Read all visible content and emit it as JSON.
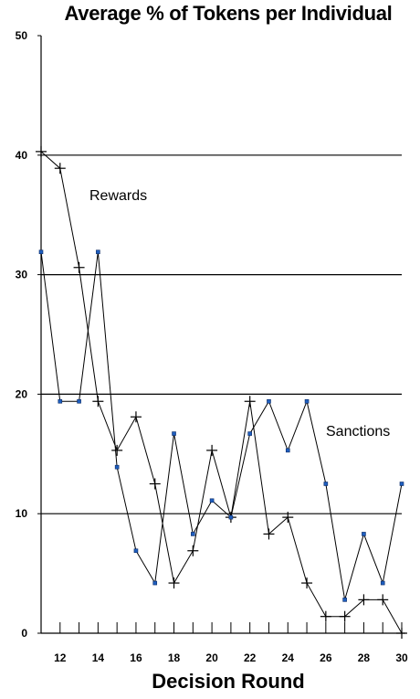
{
  "chart_data": {
    "type": "line",
    "title": "Average % of Tokens per Individual",
    "xlabel": "Decision Round",
    "ylabel": "",
    "xlim": [
      11,
      30
    ],
    "ylim": [
      0,
      50
    ],
    "x": [
      11,
      12,
      13,
      14,
      15,
      16,
      17,
      18,
      19,
      20,
      21,
      22,
      23,
      24,
      25,
      26,
      27,
      28,
      29,
      30
    ],
    "xticks": [
      12,
      14,
      16,
      18,
      20,
      22,
      24,
      26,
      28,
      30
    ],
    "yticks": [
      0,
      10,
      20,
      30,
      40,
      50
    ],
    "gridlines": [
      10,
      20,
      30,
      40
    ],
    "series": [
      {
        "name": "Rewards",
        "marker": "plus",
        "values": [
          40.3,
          38.9,
          30.6,
          19.4,
          15.3,
          18.1,
          12.5,
          4.2,
          6.9,
          15.3,
          9.7,
          19.4,
          8.3,
          9.7,
          4.2,
          1.4,
          1.4,
          2.8,
          2.8,
          0
        ]
      },
      {
        "name": "Sanctions",
        "marker": "square",
        "values": [
          31.9,
          19.4,
          19.4,
          31.9,
          13.9,
          6.9,
          4.2,
          16.7,
          8.3,
          11.1,
          9.7,
          16.7,
          19.4,
          15.3,
          19.4,
          12.5,
          2.8,
          8.3,
          4.2,
          12.5
        ]
      }
    ],
    "annotations": [
      "Rewards",
      "Sanctions"
    ],
    "colors": {
      "line": "#000000",
      "marker_fill": "#1f5fbf"
    }
  }
}
